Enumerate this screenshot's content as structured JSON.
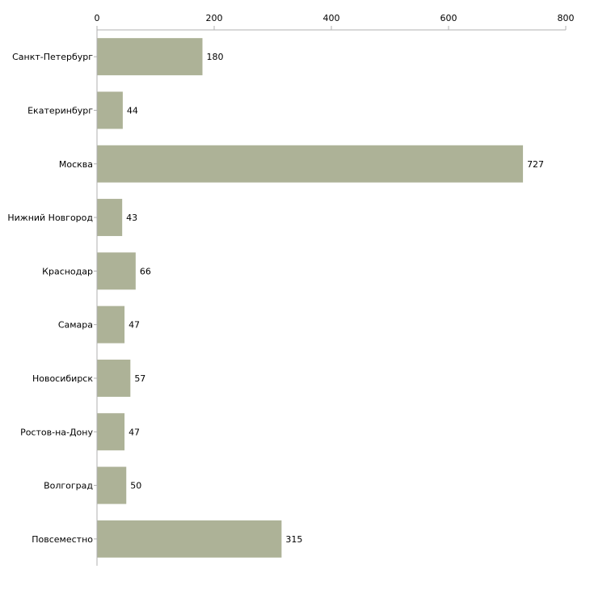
{
  "chart_data": {
    "type": "bar",
    "orientation": "horizontal",
    "title": "",
    "xlabel": "",
    "ylabel": "",
    "xlim": [
      0,
      800
    ],
    "ticks": [
      0,
      200,
      400,
      600,
      800
    ],
    "tick_labels": [
      "0",
      "200",
      "400",
      "600",
      "800"
    ],
    "axis_position": "top",
    "grid": false,
    "categories": [
      "Санкт-Петербург",
      "Екатеринбург",
      "Москва",
      "Нижний Новгород",
      "Краснодар",
      "Самара",
      "Новосибирск",
      "Ростов-на-Дону",
      "Волгоград",
      "Повсеместно"
    ],
    "values": [
      180,
      44,
      727,
      43,
      66,
      47,
      57,
      47,
      50,
      315
    ],
    "value_labels": [
      "180",
      "44",
      "727",
      "43",
      "66",
      "47",
      "57",
      "47",
      "50",
      "315"
    ],
    "colors": {
      "bar": "#adb297",
      "axis": "#b0b0b0",
      "text": "#000000"
    }
  }
}
